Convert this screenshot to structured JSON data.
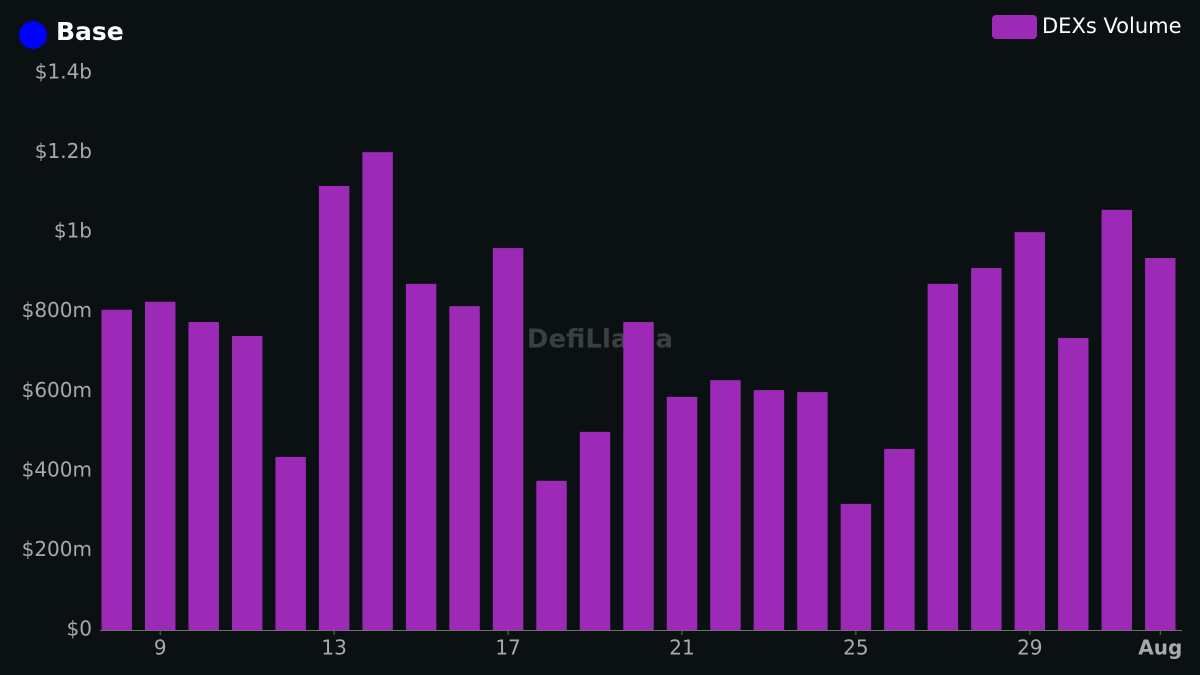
{
  "chart_data": {
    "type": "bar",
    "title": "Base",
    "watermark": "DefiLlama",
    "categories": [
      null,
      "9",
      null,
      null,
      null,
      "13",
      null,
      null,
      null,
      "17",
      null,
      null,
      null,
      "21",
      null,
      null,
      null,
      "25",
      null,
      null,
      null,
      "29",
      null,
      null,
      "Aug"
    ],
    "series": [
      {
        "name": "DEXs Volume",
        "color": "#9c2ab6",
        "values": [
          805000000,
          825000000,
          774000000,
          739000000,
          435000000,
          1116000000,
          1201000000,
          870000000,
          814000000,
          960000000,
          375000000,
          498000000,
          774000000,
          586000000,
          628000000,
          603000000,
          598000000,
          317000000,
          455000000,
          870000000,
          910000000,
          1000000000,
          734000000,
          1056000000,
          935000000
        ]
      }
    ],
    "ylim": [
      0,
      1400000000
    ],
    "yticks": [
      {
        "value": 0,
        "label": "$0"
      },
      {
        "value": 200000000,
        "label": "$200m"
      },
      {
        "value": 400000000,
        "label": "$400m"
      },
      {
        "value": 600000000,
        "label": "$600m"
      },
      {
        "value": 800000000,
        "label": "$800m"
      },
      {
        "value": 1000000000,
        "label": "$1b"
      },
      {
        "value": 1200000000,
        "label": "$1.2b"
      },
      {
        "value": 1400000000,
        "label": "$1.4b"
      }
    ],
    "legend": "top-right",
    "title_marker_color": "#0000ff",
    "grid": false
  }
}
